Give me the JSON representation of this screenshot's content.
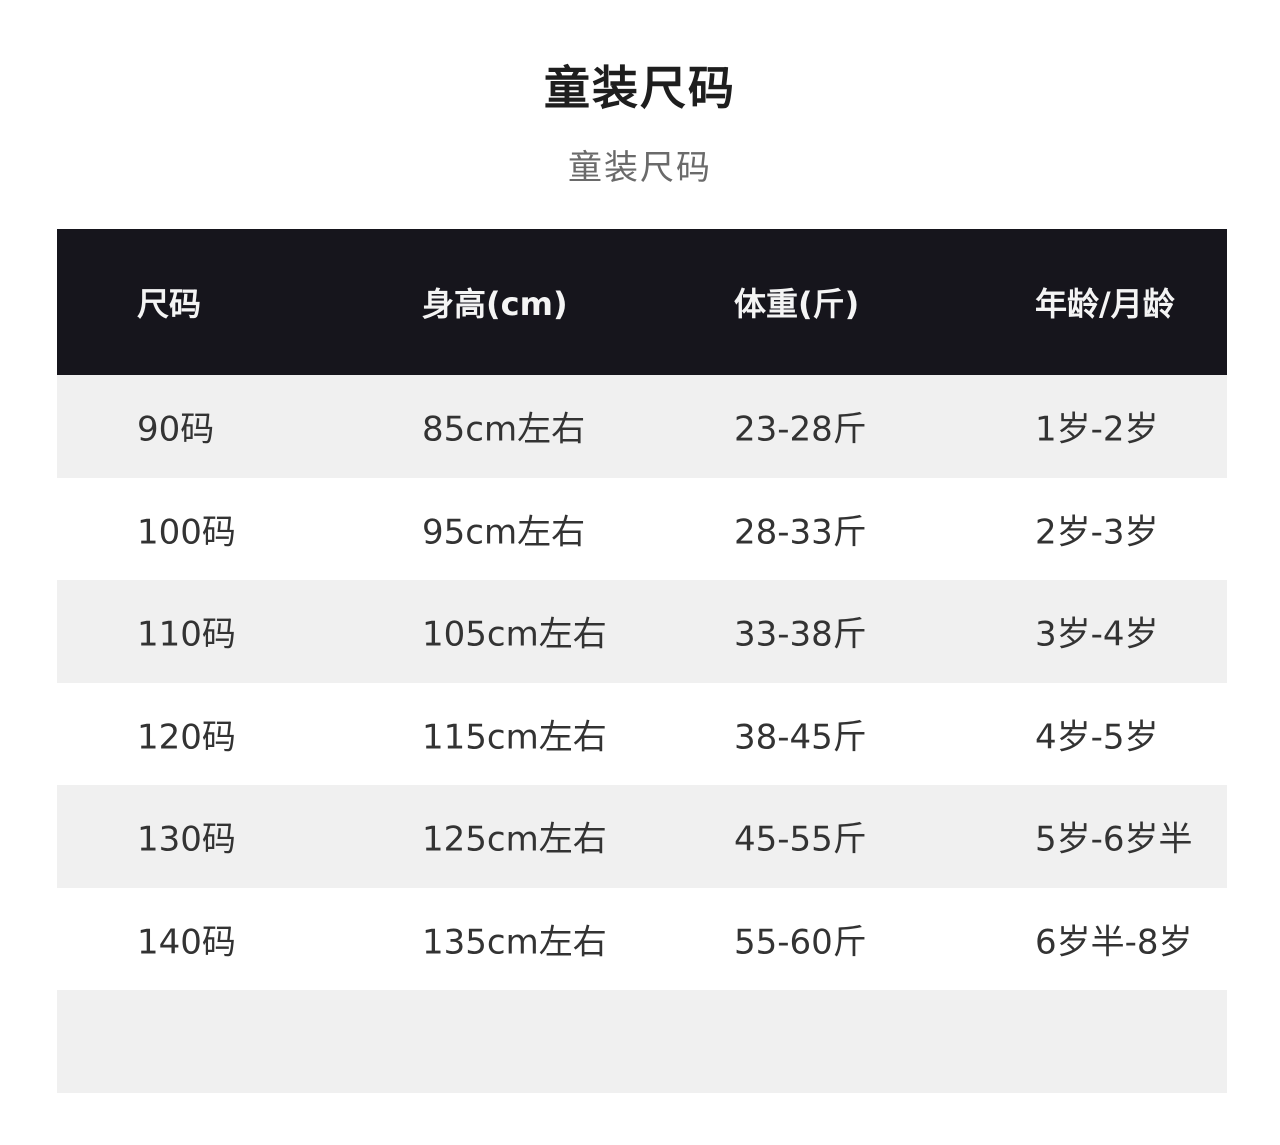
{
  "title": "童装尺码",
  "subtitle": "童装尺码",
  "table": {
    "headers": [
      "尺码",
      "身高(cm)",
      "体重(斤)",
      "年龄/月龄"
    ],
    "rows": [
      [
        "90码",
        "85cm左右",
        "23-28斤",
        "1岁-2岁"
      ],
      [
        "100码",
        "95cm左右",
        "28-33斤",
        "2岁-3岁"
      ],
      [
        "110码",
        "105cm左右",
        "33-38斤",
        "3岁-4岁"
      ],
      [
        "120码",
        "115cm左右",
        "38-45斤",
        "4岁-5岁"
      ],
      [
        "130码",
        "125cm左右",
        "45-55斤",
        "5岁-6岁半"
      ],
      [
        "140码",
        "135cm左右",
        "55-60斤",
        "6岁半-8岁"
      ]
    ]
  },
  "colors": {
    "header_bg": "#16151c",
    "stripe": "#f0f0f0"
  }
}
